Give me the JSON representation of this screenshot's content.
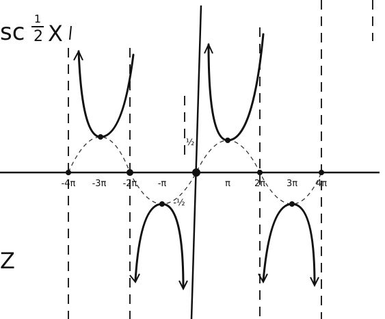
{
  "title": {
    "prefix": "sc",
    "numerator": "1",
    "denominator": "2",
    "variable": "X"
  },
  "x_tick_labels": [
    "-4π",
    "-3π",
    "-2π",
    "-π",
    "π",
    "2π",
    "3π",
    "4π"
  ],
  "y_tick_labels": [
    "½",
    "-½"
  ],
  "margin_letter": "Z"
}
